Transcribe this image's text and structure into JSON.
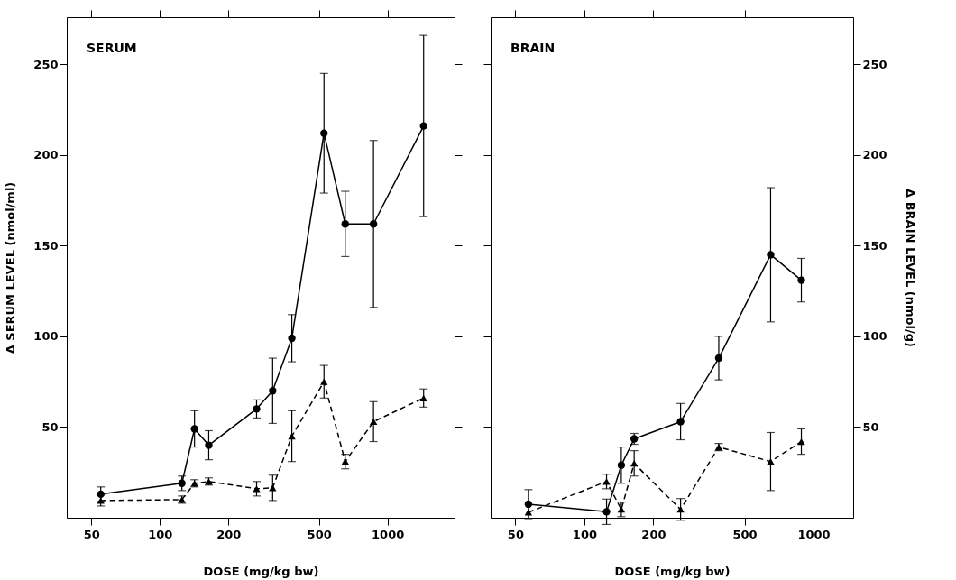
{
  "chart_data": [
    {
      "type": "line",
      "title": "SERUM",
      "xlabel": "DOSE (mg/kg bw)",
      "ylabel": "Δ SERUM LEVEL (nmol/ml)",
      "log": "x",
      "xlim": [
        39,
        1970
      ],
      "xticks": [
        50,
        100,
        200,
        500,
        1000
      ],
      "ylim": [
        0,
        276
      ],
      "yticks": [
        50,
        100,
        150,
        200,
        250
      ],
      "x": [
        55,
        125,
        142,
        164,
        266,
        313,
        380,
        526,
        652,
        868,
        1441
      ],
      "series": [
        {
          "color": "#000000",
          "marker": "circle",
          "line_style": "solid",
          "values": [
            13,
            19,
            49,
            40,
            60,
            70,
            99,
            212,
            162,
            162,
            216
          ],
          "errors": [
            4,
            4,
            10,
            8,
            5,
            18,
            13,
            33,
            18,
            46,
            50
          ]
        },
        {
          "color": "#000000",
          "marker": "triangle",
          "line_style": "dashed",
          "values": [
            9.5,
            10,
            19,
            20,
            16,
            16.5,
            45,
            75,
            31,
            53,
            66
          ],
          "errors": [
            3,
            2,
            2,
            2,
            4,
            7,
            14,
            9,
            4,
            11,
            5
          ]
        }
      ]
    },
    {
      "type": "line",
      "title": "BRAIN",
      "xlabel": "DOSE (mg/kg bw)",
      "y2label": "Δ BRAIN LEVEL (nmol/g)",
      "log": "x",
      "xlim": [
        39,
        1490
      ],
      "xticks": [
        50,
        100,
        200,
        500,
        1000
      ],
      "y2lim": [
        0,
        276
      ],
      "y2ticks": [
        50,
        100,
        150,
        200,
        250
      ],
      "x": [
        57,
        125,
        145,
        165,
        263,
        386,
        650,
        885
      ],
      "series": [
        {
          "color": "#000000",
          "marker": "circle",
          "line_style": "solid",
          "axis": "y2",
          "values": [
            7.5,
            3.3,
            29,
            43.5,
            53,
            88,
            145,
            131
          ],
          "errors": [
            8,
            7,
            10,
            3,
            10,
            12,
            37,
            12
          ]
        },
        {
          "color": "#000000",
          "marker": "triangle",
          "line_style": "dashed",
          "axis": "y2",
          "values": [
            3,
            20,
            4.6,
            30,
            4.6,
            39,
            31,
            42
          ],
          "errors": [
            null,
            4,
            4,
            7,
            6,
            2,
            16,
            7
          ]
        }
      ]
    }
  ]
}
